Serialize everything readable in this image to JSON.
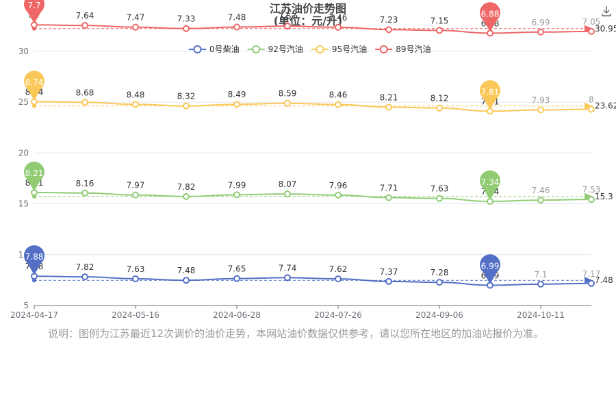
{
  "title": "江苏油价走势图",
  "subtitle": "(单位：元/升)",
  "note": "说明：图例为江苏最近12次调价的油价走势，本网站油价数据仅供参考，请以您所在地区的加油站报价为准。",
  "chart_data": {
    "type": "line",
    "legend_position": "top-center",
    "y_axis": {
      "min": 5,
      "max": 31,
      "ticks": [
        5,
        10,
        15,
        20,
        25,
        30
      ]
    },
    "x_axis": {
      "tick_labels": [
        "2024-04-17",
        "2024-05-16",
        "2024-06-28",
        "2024-07-26",
        "2024-09-06",
        "2024-10-11"
      ],
      "tick_indices": [
        0,
        2,
        4,
        6,
        8,
        10
      ]
    },
    "series": [
      {
        "name": "0号柴油",
        "color": "#5470c6",
        "offset": 0,
        "values": [
          7.88,
          7.82,
          7.63,
          7.48,
          7.65,
          7.74,
          7.62,
          7.37,
          7.28,
          6.99,
          7.1,
          7.17
        ],
        "max_label": "7.88",
        "min_label": "6.99",
        "avg_label": "7.48"
      },
      {
        "name": "92号汽油",
        "color": "#91cc75",
        "offset": 7.9,
        "values": [
          8.21,
          8.16,
          7.97,
          7.82,
          7.99,
          8.07,
          7.96,
          7.71,
          7.63,
          7.34,
          7.46,
          7.53
        ],
        "max_label": "8.21",
        "min_label": "7.34",
        "avg_label": "15.3"
      },
      {
        "name": "95号汽油",
        "color": "#fac858",
        "offset": 16.3,
        "values": [
          8.74,
          8.68,
          8.48,
          8.32,
          8.49,
          8.59,
          8.46,
          8.21,
          8.12,
          7.81,
          7.93,
          8.0
        ],
        "max_label": "8.74",
        "min_label": "7.81",
        "avg_label": "23.62"
      },
      {
        "name": "89号汽油",
        "color": "#ee6666",
        "offset": 24.9,
        "values": [
          7.7,
          7.64,
          7.47,
          7.33,
          7.48,
          7.57,
          7.46,
          7.23,
          7.15,
          6.88,
          6.99,
          7.05
        ],
        "max_label": "7.7",
        "min_label": "6.88",
        "avg_label": "30.95"
      }
    ]
  }
}
